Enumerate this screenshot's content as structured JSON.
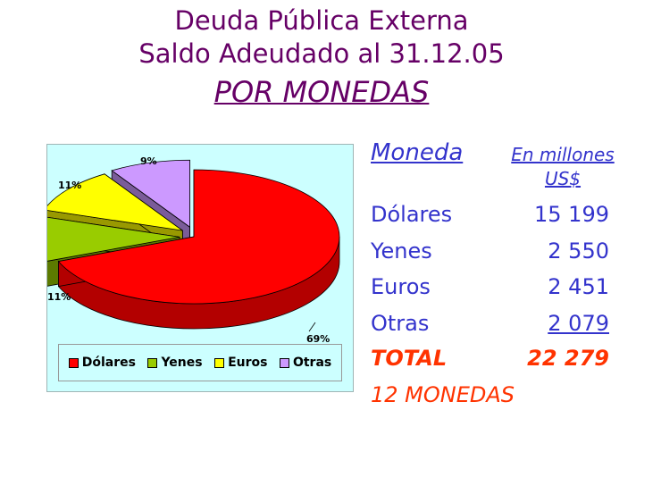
{
  "title": {
    "line1": "Deuda Pública Externa",
    "line2": "Saldo Adeudado al 31.12.05",
    "line3": "POR MONEDAS"
  },
  "colors": {
    "dolares": "#ff0000",
    "yenes": "#99cc00",
    "euros": "#ffff00",
    "otras": "#cc99ff",
    "title": "#660066",
    "table": "#3333cc",
    "total": "#ff3300"
  },
  "chart_data": {
    "type": "pie",
    "categories": [
      "Dólares",
      "Yenes",
      "Euros",
      "Otras"
    ],
    "values": [
      69,
      11,
      11,
      9
    ],
    "value_labels": [
      "69%",
      "11%",
      "11%",
      "9%"
    ],
    "legend": {
      "placement": "bottom",
      "entries": [
        "Dólares",
        "Yenes",
        "Euros",
        "Otras"
      ]
    }
  },
  "table": {
    "header_currency": "Moneda",
    "header_unit_line1": "En millones",
    "header_unit_line2": "US$",
    "rows": [
      {
        "currency": "Dólares",
        "amount": "15 199"
      },
      {
        "currency": "Yenes",
        "amount": "2 550"
      },
      {
        "currency": "Euros",
        "amount": "2 451"
      },
      {
        "currency": "Otras",
        "amount": "2 079"
      }
    ],
    "total_label": "TOTAL",
    "total_amount": "22 279",
    "footer": "12 MONEDAS"
  }
}
